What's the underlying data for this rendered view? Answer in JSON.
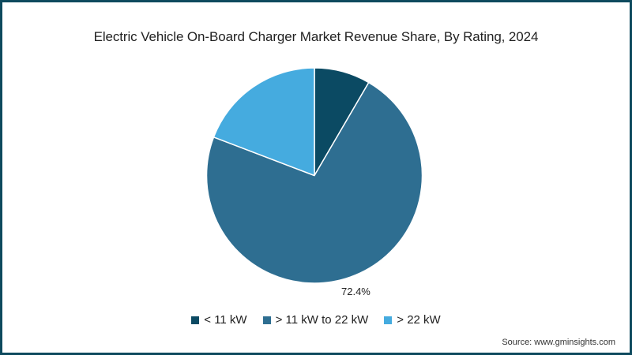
{
  "chart_data": {
    "type": "pie",
    "title": "Electric Vehicle On-Board Charger Market Revenue Share, By Rating, 2024",
    "categories": [
      "< 11 kW",
      "> 11 kW to 22 kW",
      "> 22 kW"
    ],
    "values": [
      8.4,
      72.4,
      19.2
    ],
    "colors": [
      "#0b4a63",
      "#2e6e91",
      "#45abdf"
    ],
    "data_labels": [
      {
        "category": "> 11 kW to 22 kW",
        "text": "72.4%"
      }
    ],
    "start_angle": "12 o'clock, clockwise",
    "legend_position": "bottom"
  },
  "title": "Electric Vehicle On-Board Charger Market Revenue Share, By Rating, 2024",
  "label_main": "72.4%",
  "legend": [
    {
      "label": "< 11 kW",
      "color": "#0b4a63"
    },
    {
      "label": "> 11 kW to 22 kW",
      "color": "#2e6e91"
    },
    {
      "label": "> 22 kW",
      "color": "#45abdf"
    }
  ],
  "source": "Source: www.gminsights.com",
  "border_color": "#0e4a5e"
}
